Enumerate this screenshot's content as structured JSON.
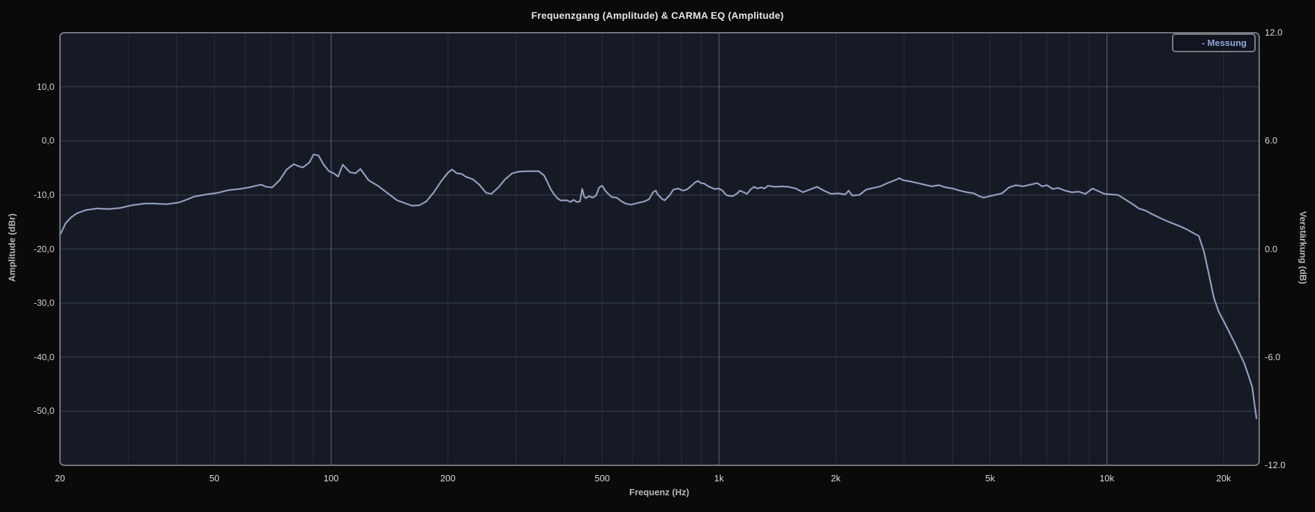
{
  "title": "Frequenzgang (Amplitude) & CARMA EQ (Amplitude)",
  "legend": {
    "items": [
      {
        "label": "- Messung",
        "color": "#93a6d8"
      }
    ]
  },
  "axes": {
    "left": {
      "title": "Amplitude (dBr)",
      "ticks": [
        {
          "label": "10,0",
          "value": 10
        },
        {
          "label": "0,0",
          "value": 0
        },
        {
          "label": "-10,0",
          "value": -10
        },
        {
          "label": "-20,0",
          "value": -20
        },
        {
          "label": "-30,0",
          "value": -30
        },
        {
          "label": "-40,0",
          "value": -40
        },
        {
          "label": "-50,0",
          "value": -50
        }
      ]
    },
    "right": {
      "title": "Verstärkung (dB)",
      "ticks": [
        {
          "label": "12.0",
          "value": 12
        },
        {
          "label": "6.0",
          "value": 6
        },
        {
          "label": "0.0",
          "value": 0
        },
        {
          "label": "-6.0",
          "value": -6
        },
        {
          "label": "-12.0",
          "value": -12
        }
      ]
    },
    "bottom": {
      "title": "Frequenz (Hz)",
      "ticks": [
        {
          "label": "20",
          "f": 20
        },
        {
          "label": "50",
          "f": 50
        },
        {
          "label": "100",
          "f": 100
        },
        {
          "label": "200",
          "f": 200
        },
        {
          "label": "500",
          "f": 500
        },
        {
          "label": "1k",
          "f": 1000
        },
        {
          "label": "2k",
          "f": 2000
        },
        {
          "label": "5k",
          "f": 5000
        },
        {
          "label": "10k",
          "f": 10000
        },
        {
          "label": "20k",
          "f": 20000
        }
      ]
    }
  },
  "colors": {
    "page_bg": "#0a0a0a",
    "plot_bg": "#151a25",
    "plot_border": "#75797e",
    "grid_minor": "rgba(160,175,205,0.14)",
    "grid_major": "rgba(190,200,220,0.34)",
    "grid_horizontal": "rgba(170,182,205,0.27)",
    "curve": "#a9b4d8",
    "title_text": "#e6e6e6"
  },
  "chart_data": {
    "type": "line",
    "title": "Frequenzgang (Amplitude) & CARMA EQ (Amplitude)",
    "xlabel": "Frequenz (Hz)",
    "ylabel_left": "Amplitude (dBr)",
    "ylabel_right": "Verstärkung (dB)",
    "xscale": "log",
    "xlim": [
      20,
      24700
    ],
    "ylim_left": [
      -60,
      20
    ],
    "ylim_right": [
      -12,
      12
    ],
    "grid": {
      "v_minor": [
        30,
        40,
        50,
        60,
        70,
        80,
        90,
        200,
        300,
        400,
        500,
        600,
        700,
        800,
        900,
        2000,
        3000,
        4000,
        5000,
        6000,
        7000,
        8000,
        9000,
        20000
      ],
      "v_major": [
        100,
        1000,
        10000
      ],
      "h_left_values": [
        10,
        0,
        -10,
        -20,
        -30,
        -40,
        -50
      ]
    },
    "legend_position": "top-right",
    "series": [
      {
        "name": "Messung",
        "color": "#a9b4d8",
        "points": [
          [
            20,
            -17.4
          ],
          [
            20.7,
            -15.2
          ],
          [
            21.4,
            -14.1
          ],
          [
            22.1,
            -13.4
          ],
          [
            23.3,
            -12.8
          ],
          [
            24.9,
            -12.5
          ],
          [
            26.7,
            -12.6
          ],
          [
            28.6,
            -12.4
          ],
          [
            30.7,
            -11.9
          ],
          [
            33,
            -11.6
          ],
          [
            35,
            -11.6
          ],
          [
            37.7,
            -11.7
          ],
          [
            40.5,
            -11.4
          ],
          [
            42.7,
            -10.8
          ],
          [
            44.3,
            -10.3
          ],
          [
            47.7,
            -9.9
          ],
          [
            51,
            -9.6
          ],
          [
            54.5,
            -9.1
          ],
          [
            58,
            -8.9
          ],
          [
            61.5,
            -8.6
          ],
          [
            64,
            -8.3
          ],
          [
            66,
            -8.1
          ],
          [
            68,
            -8.5
          ],
          [
            70.5,
            -8.6
          ],
          [
            73.6,
            -7.3
          ],
          [
            76.8,
            -5.3
          ],
          [
            80.1,
            -4.3
          ],
          [
            82.5,
            -4.7
          ],
          [
            84.6,
            -4.9
          ],
          [
            87.9,
            -4.0
          ],
          [
            90.1,
            -2.5
          ],
          [
            92.8,
            -2.7
          ],
          [
            95.5,
            -4.3
          ],
          [
            98.7,
            -5.6
          ],
          [
            101.6,
            -6.0
          ],
          [
            104.2,
            -6.6
          ],
          [
            107.2,
            -4.4
          ],
          [
            111.8,
            -5.8
          ],
          [
            115.6,
            -6.0
          ],
          [
            119,
            -5.2
          ],
          [
            125,
            -7.3
          ],
          [
            132,
            -8.3
          ],
          [
            140,
            -9.7
          ],
          [
            148,
            -11.0
          ],
          [
            156,
            -11.6
          ],
          [
            162,
            -12.0
          ],
          [
            169,
            -11.9
          ],
          [
            176,
            -11.2
          ],
          [
            184,
            -9.5
          ],
          [
            192,
            -7.5
          ],
          [
            200,
            -5.9
          ],
          [
            205,
            -5.3
          ],
          [
            211,
            -6.0
          ],
          [
            217,
            -6.1
          ],
          [
            222,
            -6.6
          ],
          [
            232,
            -7.1
          ],
          [
            241,
            -8.1
          ],
          [
            251,
            -9.6
          ],
          [
            259,
            -9.8
          ],
          [
            270,
            -8.6
          ],
          [
            281,
            -7.1
          ],
          [
            293,
            -6.0
          ],
          [
            304,
            -5.7
          ],
          [
            321,
            -5.6
          ],
          [
            343,
            -5.6
          ],
          [
            354,
            -6.4
          ],
          [
            361,
            -7.6
          ],
          [
            368,
            -8.9
          ],
          [
            375,
            -9.8
          ],
          [
            382,
            -10.5
          ],
          [
            390,
            -11.0
          ],
          [
            406,
            -11.0
          ],
          [
            414,
            -11.3
          ],
          [
            422,
            -10.9
          ],
          [
            430,
            -11.3
          ],
          [
            438,
            -11.2
          ],
          [
            444,
            -8.9
          ],
          [
            449,
            -10.3
          ],
          [
            454,
            -10.6
          ],
          [
            463,
            -10.2
          ],
          [
            472,
            -10.5
          ],
          [
            482,
            -10.1
          ],
          [
            491,
            -8.6
          ],
          [
            500,
            -8.3
          ],
          [
            510,
            -9.3
          ],
          [
            520,
            -9.9
          ],
          [
            530,
            -10.4
          ],
          [
            545,
            -10.5
          ],
          [
            561,
            -11.2
          ],
          [
            575,
            -11.6
          ],
          [
            592,
            -11.8
          ],
          [
            609,
            -11.6
          ],
          [
            624,
            -11.4
          ],
          [
            642,
            -11.2
          ],
          [
            660,
            -10.8
          ],
          [
            676,
            -9.5
          ],
          [
            687,
            -9.2
          ],
          [
            695,
            -9.9
          ],
          [
            715,
            -10.8
          ],
          [
            724,
            -11.0
          ],
          [
            745,
            -10.1
          ],
          [
            763,
            -9.0
          ],
          [
            785,
            -8.8
          ],
          [
            807,
            -9.2
          ],
          [
            826,
            -9.0
          ],
          [
            846,
            -8.4
          ],
          [
            867,
            -7.7
          ],
          [
            883,
            -7.4
          ],
          [
            898,
            -7.8
          ],
          [
            917,
            -7.9
          ],
          [
            938,
            -8.4
          ],
          [
            953,
            -8.6
          ],
          [
            973,
            -8.9
          ],
          [
            1000,
            -8.8
          ],
          [
            1021,
            -9.2
          ],
          [
            1043,
            -10.0
          ],
          [
            1065,
            -10.2
          ],
          [
            1087,
            -10.2
          ],
          [
            1110,
            -9.8
          ],
          [
            1133,
            -9.2
          ],
          [
            1157,
            -9.5
          ],
          [
            1181,
            -9.8
          ],
          [
            1206,
            -9.0
          ],
          [
            1231,
            -8.5
          ],
          [
            1257,
            -8.8
          ],
          [
            1283,
            -8.6
          ],
          [
            1310,
            -8.8
          ],
          [
            1337,
            -8.3
          ],
          [
            1394,
            -8.5
          ],
          [
            1450,
            -8.4
          ],
          [
            1512,
            -8.5
          ],
          [
            1578,
            -8.8
          ],
          [
            1645,
            -9.5
          ],
          [
            1715,
            -9.0
          ],
          [
            1789,
            -8.5
          ],
          [
            1865,
            -9.2
          ],
          [
            1945,
            -9.8
          ],
          [
            2028,
            -9.7
          ],
          [
            2115,
            -9.9
          ],
          [
            2160,
            -9.2
          ],
          [
            2205,
            -10.1
          ],
          [
            2299,
            -10.0
          ],
          [
            2398,
            -9.0
          ],
          [
            2500,
            -8.7
          ],
          [
            2607,
            -8.4
          ],
          [
            2719,
            -7.8
          ],
          [
            2835,
            -7.3
          ],
          [
            2918,
            -6.9
          ],
          [
            2990,
            -7.3
          ],
          [
            3117,
            -7.5
          ],
          [
            3250,
            -7.8
          ],
          [
            3389,
            -8.1
          ],
          [
            3534,
            -8.4
          ],
          [
            3685,
            -8.2
          ],
          [
            3842,
            -8.6
          ],
          [
            4007,
            -8.8
          ],
          [
            4178,
            -9.2
          ],
          [
            4356,
            -9.5
          ],
          [
            4542,
            -9.7
          ],
          [
            4677,
            -10.2
          ],
          [
            4815,
            -10.5
          ],
          [
            4935,
            -10.3
          ],
          [
            5146,
            -10.0
          ],
          [
            5366,
            -9.7
          ],
          [
            5595,
            -8.6
          ],
          [
            5834,
            -8.2
          ],
          [
            6083,
            -8.4
          ],
          [
            6343,
            -8.1
          ],
          [
            6614,
            -7.8
          ],
          [
            6810,
            -8.4
          ],
          [
            7010,
            -8.2
          ],
          [
            7250,
            -8.9
          ],
          [
            7490,
            -8.7
          ],
          [
            7800,
            -9.2
          ],
          [
            8120,
            -9.5
          ],
          [
            8460,
            -9.4
          ],
          [
            8810,
            -9.8
          ],
          [
            9180,
            -8.8
          ],
          [
            9450,
            -9.2
          ],
          [
            9850,
            -9.8
          ],
          [
            10260,
            -9.9
          ],
          [
            10690,
            -10.0
          ],
          [
            11140,
            -10.8
          ],
          [
            11600,
            -11.6
          ],
          [
            12090,
            -12.5
          ],
          [
            12590,
            -12.9
          ],
          [
            13120,
            -13.6
          ],
          [
            13670,
            -14.2
          ],
          [
            14240,
            -14.8
          ],
          [
            14830,
            -15.3
          ],
          [
            15450,
            -15.8
          ],
          [
            16100,
            -16.4
          ],
          [
            16770,
            -17.1
          ],
          [
            17260,
            -17.6
          ],
          [
            17800,
            -20.5
          ],
          [
            18300,
            -24.5
          ],
          [
            18870,
            -29.0
          ],
          [
            19400,
            -31.5
          ],
          [
            20100,
            -33.6
          ],
          [
            21300,
            -37.2
          ],
          [
            22600,
            -41.1
          ],
          [
            23200,
            -43.5
          ],
          [
            23700,
            -45.5
          ],
          [
            24000,
            -48.5
          ],
          [
            24300,
            -51.3
          ]
        ]
      }
    ]
  }
}
